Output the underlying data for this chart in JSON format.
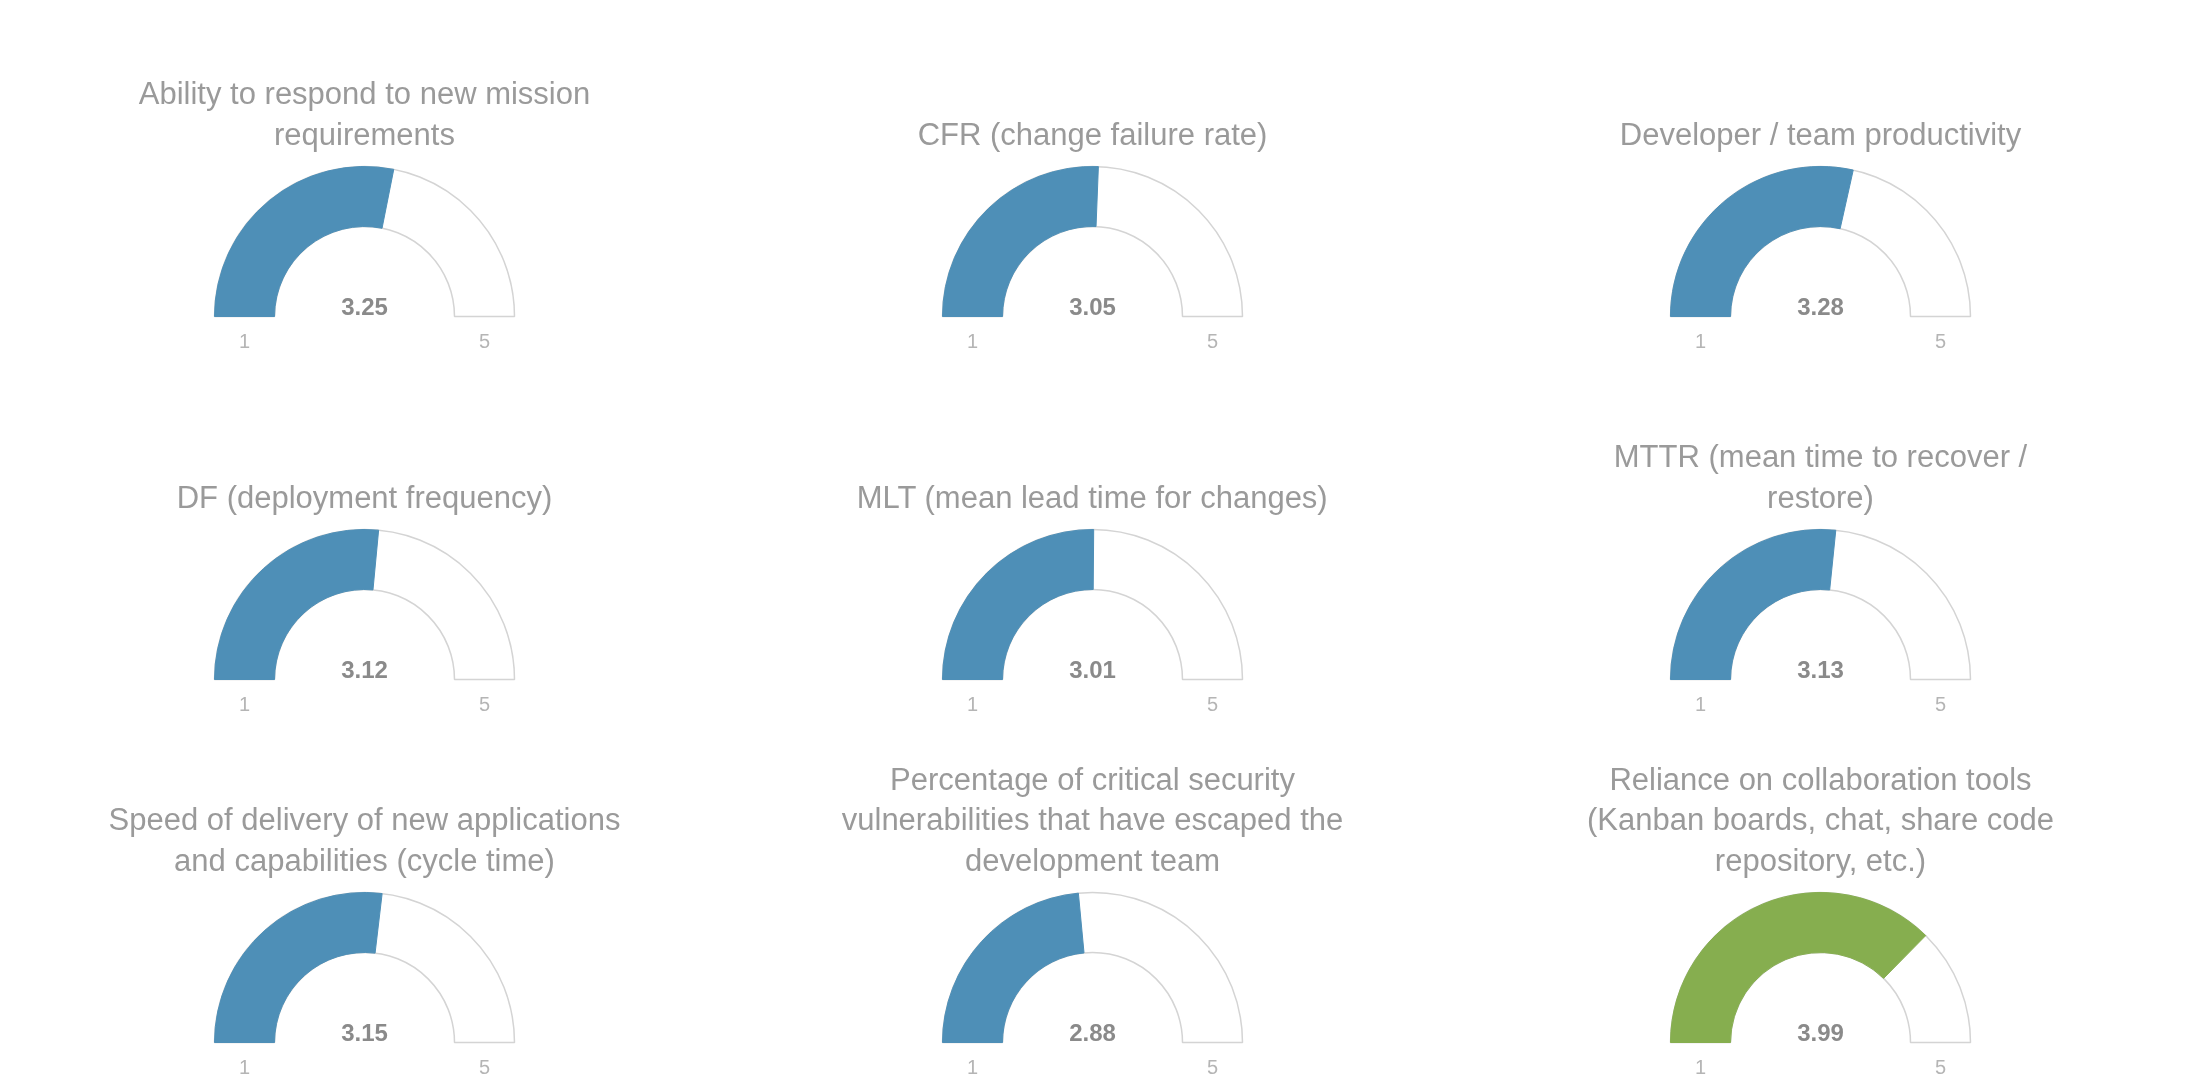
{
  "chart_data": [
    {
      "type": "other",
      "title": "Ability to respond to new mission\nrequirements",
      "values": [
        3.25
      ],
      "data_labels": true,
      "color": "#4e8fb7",
      "annotations": [
        "1",
        "5"
      ]
    },
    {
      "type": "other",
      "title": "CFR (change failure rate)",
      "values": [
        3.05
      ],
      "data_labels": true,
      "color": "#4e8fb7",
      "annotations": [
        "1",
        "5"
      ]
    },
    {
      "type": "other",
      "title": "Developer / team productivity",
      "values": [
        3.28
      ],
      "data_labels": true,
      "color": "#4e8fb7",
      "annotations": [
        "1",
        "5"
      ]
    },
    {
      "type": "other",
      "title": "DF (deployment frequency)",
      "values": [
        3.12
      ],
      "data_labels": true,
      "color": "#4e8fb7",
      "annotations": [
        "1",
        "5"
      ]
    },
    {
      "type": "other",
      "title": "MLT (mean lead time for changes)",
      "values": [
        3.01
      ],
      "data_labels": true,
      "color": "#4e8fb7",
      "annotations": [
        "1",
        "5"
      ]
    },
    {
      "type": "other",
      "title": "MTTR (mean time to recover /\nrestore)",
      "values": [
        3.13
      ],
      "data_labels": true,
      "color": "#4e8fb7",
      "annotations": [
        "1",
        "5"
      ]
    },
    {
      "type": "other",
      "title": "Speed of delivery of new applications\nand capabilities (cycle time)",
      "values": [
        3.15
      ],
      "data_labels": true,
      "color": "#4e8fb7",
      "annotations": [
        "1",
        "5"
      ]
    },
    {
      "type": "other",
      "title": "Percentage of critical security\nvulnerabilities that have escaped the\ndevelopment team",
      "values": [
        2.88
      ],
      "data_labels": true,
      "color": "#4e8fb7",
      "annotations": [
        "1",
        "5"
      ]
    },
    {
      "type": "other",
      "title": "Reliance on collaboration tools\n(Kanban boards, chat, share code\nrepository, etc.)",
      "values": [
        3.99
      ],
      "data_labels": true,
      "color": "#86ae4f",
      "annotations": [
        "1",
        "5"
      ]
    }
  ]
}
